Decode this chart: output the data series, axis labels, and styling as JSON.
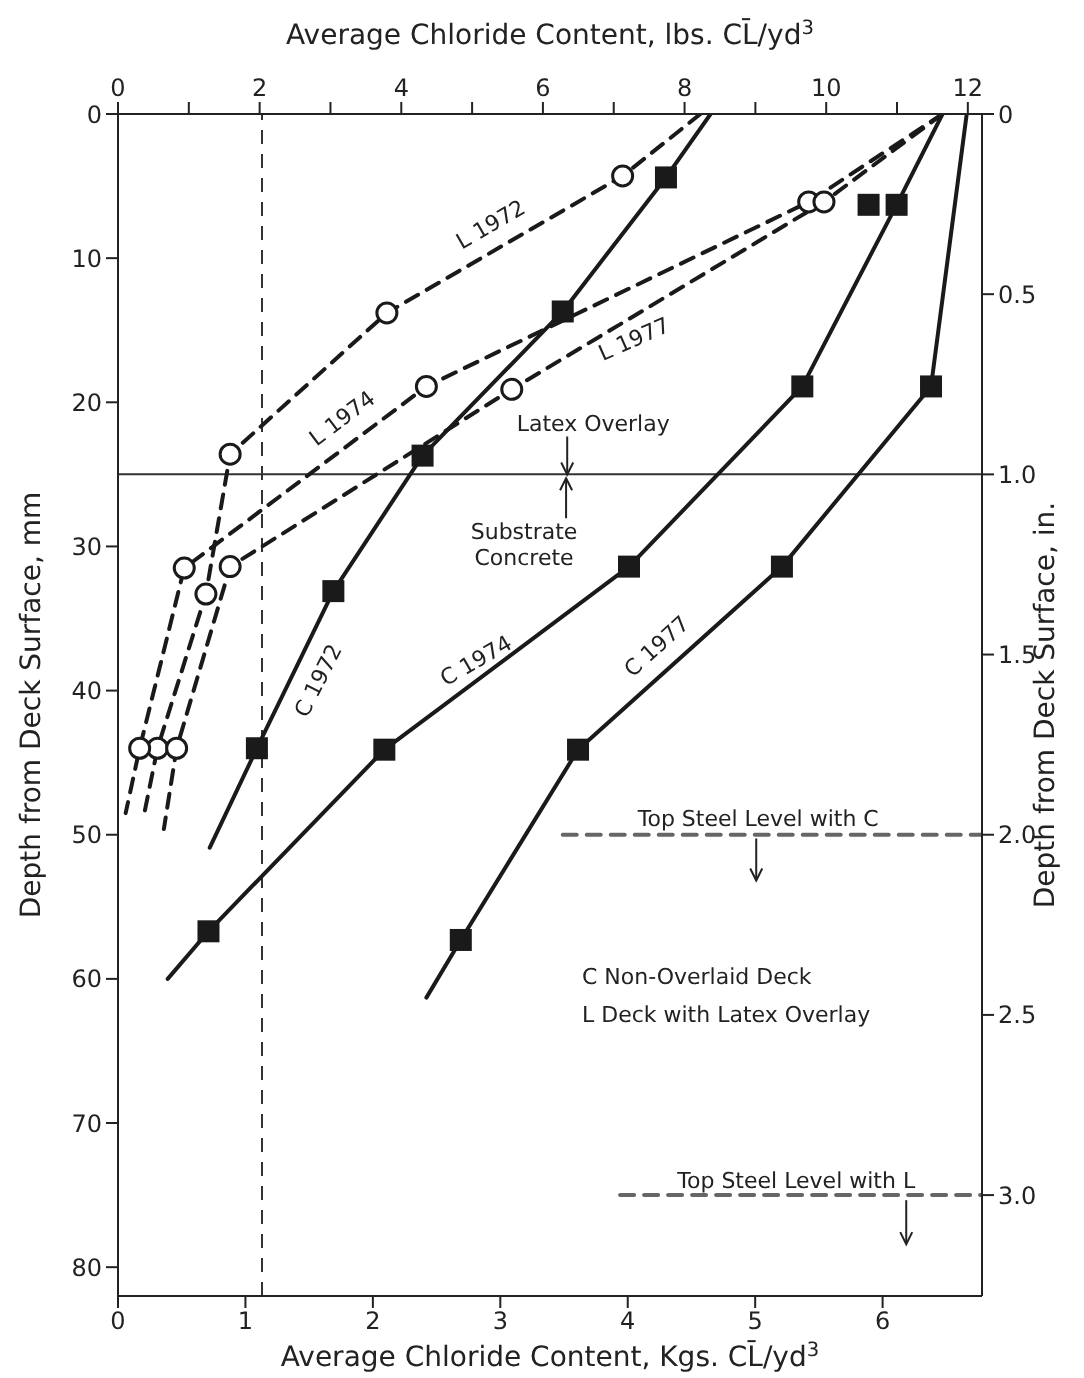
{
  "chart_data": {
    "type": "line",
    "xlabel": "Average Chloride Content, Kgs. CL̄/yd$^{3}$",
    "x2label": "Average Chloride Content, lbs. CL̄/yd$^{3}$",
    "ylabel": "Depth from Deck Surface, mm",
    "y2label": "Depth from Deck Surface, in.",
    "xlim": [
      0,
      6.78
    ],
    "xticks": [
      0,
      1,
      2,
      3,
      4,
      5,
      6
    ],
    "x2lim": [
      0,
      12.2
    ],
    "x2ticks": [
      0,
      {
        "value": 1,
        "label": null
      },
      2,
      {
        "value": 3,
        "label": null
      },
      4,
      {
        "value": 5,
        "label": null
      },
      6,
      {
        "value": 7,
        "label": null
      },
      8,
      {
        "value": 9,
        "label": null
      },
      10,
      {
        "value": 11,
        "label": null
      },
      12
    ],
    "ylim": [
      82,
      0
    ],
    "yticks": [
      0,
      10,
      20,
      30,
      40,
      50,
      60,
      70,
      80
    ],
    "y2lim": [
      3.28,
      0
    ],
    "y2ticks": [
      0,
      0.5,
      {
        "value": 1,
        "label": "1.0"
      },
      1.5,
      {
        "value": 2,
        "label": "2.0"
      },
      2.5,
      {
        "value": 3,
        "label": "3.0"
      }
    ],
    "series": [
      {
        "color": "#1a1a1a",
        "line_style": "dashed",
        "marker": "none",
        "x": [
          4.57,
          3.96,
          2.11,
          0.88,
          0.69,
          0.31,
          0.2
        ],
        "values": [
          0,
          4.3,
          13.8,
          23.6,
          33.3,
          44,
          48.8
        ]
      },
      {
        "color": "#1a1a1a",
        "line_style": "dashed",
        "marker": "none",
        "x": [
          6.47,
          5.42,
          2.42,
          0.52,
          0.17,
          0.06
        ],
        "values": [
          0,
          6.1,
          18.9,
          31.5,
          44,
          48.5
        ]
      },
      {
        "color": "#1a1a1a",
        "line_style": "dashed",
        "marker": "none",
        "x": [
          6.47,
          5.54,
          3.09,
          0.88,
          0.46,
          0.36
        ],
        "values": [
          0,
          6.1,
          19.1,
          31.4,
          44,
          49.6
        ]
      },
      {
        "color": "#1a1a1a",
        "line_style": "solid",
        "marker": "none",
        "x": [
          4.65,
          4.3,
          3.49,
          2.39,
          1.69,
          1.09,
          0.72
        ],
        "values": [
          0,
          4.4,
          13.7,
          23.7,
          33.1,
          44,
          50.9
        ]
      },
      {
        "color": "#1a1a1a",
        "line_style": "solid",
        "marker": "none",
        "x": [
          6.47,
          6.11,
          5.37,
          4.01,
          2.09,
          0.71,
          0.39
        ],
        "values": [
          0,
          6.3,
          18.9,
          31.4,
          44.1,
          56.7,
          60
        ]
      },
      {
        "color": "#1a1a1a",
        "line_style": "solid",
        "marker": "none",
        "x": [
          6.66,
          6.38,
          5.21,
          3.61,
          2.69,
          2.42
        ],
        "values": [
          0,
          18.9,
          31.4,
          44.1,
          57.3,
          61.3
        ]
      },
      {
        "color": "#666666",
        "line_style": "dashed",
        "marker": "none",
        "x": [
          3.49,
          6.78
        ],
        "values": [
          50,
          50
        ]
      },
      {
        "color": "#666666",
        "line_style": "dashed",
        "marker": "none",
        "x": [
          3.94,
          6.78
        ],
        "values": [
          75,
          75
        ]
      },
      {
        "type": "scatter",
        "color": "#1a1a1a",
        "marker": "circle",
        "x": [
          3.96,
          2.11,
          0.88,
          0.69,
          0.31,
          5.42,
          2.42,
          0.52,
          0.17,
          5.54,
          3.09,
          0.88,
          0.46
        ],
        "values": [
          4.3,
          13.8,
          23.6,
          33.3,
          44,
          6.1,
          18.9,
          31.5,
          44,
          6.1,
          19.1,
          31.4,
          44
        ]
      },
      {
        "type": "scatter",
        "color": "#1a1a1a",
        "marker": "square",
        "x": [
          4.3,
          3.49,
          2.39,
          1.69,
          1.09,
          6.11,
          5.37,
          4.01,
          2.09,
          0.71,
          5.89,
          6.38,
          5.21,
          3.61,
          2.69
        ],
        "values": [
          4.4,
          13.7,
          23.7,
          33.1,
          44,
          6.3,
          18.9,
          31.4,
          44.1,
          56.7,
          6.3,
          18.9,
          31.4,
          44.1,
          57.3
        ]
      }
    ],
    "ref_lines": [
      {
        "axis": "y",
        "value": 25,
        "color": "#333333",
        "line_style": "solid"
      },
      {
        "axis": "x",
        "value": 1.13,
        "color": "#333333",
        "line_style": "dashed"
      }
    ],
    "annotations": [
      "L 1972",
      "L 1974",
      "L 1977",
      "C 1972",
      "C 1974",
      "C 1977",
      "Latex Overlay",
      "Substrate Concrete",
      "Top Steel Level with C",
      "Top Steel Level with L",
      "C Non-Overlaid Deck",
      "L Deck with Latex Overlay"
    ]
  }
}
